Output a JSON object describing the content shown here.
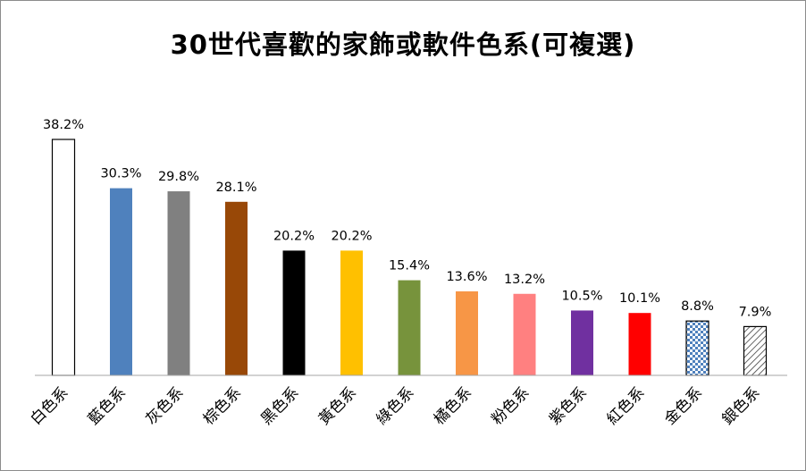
{
  "chart_data": {
    "type": "bar",
    "title": "30世代喜歡的家飾或軟件色系(可複選)",
    "categories": [
      "白色系",
      "藍色系",
      "灰色系",
      "棕色系",
      "黑色系",
      "黃色系",
      "綠色系",
      "橘色系",
      "粉色系",
      "紫色系",
      "紅色系",
      "金色系",
      "銀色系"
    ],
    "values": [
      38.2,
      30.3,
      29.8,
      28.1,
      20.2,
      20.2,
      15.4,
      13.6,
      13.2,
      10.5,
      10.1,
      8.8,
      7.9
    ],
    "value_labels": [
      "38.2%",
      "30.3%",
      "29.8%",
      "28.1%",
      "20.2%",
      "20.2%",
      "15.4%",
      "13.6%",
      "13.2%",
      "10.5%",
      "10.1%",
      "8.8%",
      "7.9%"
    ],
    "colors": [
      "#ffffff",
      "#4f81bd",
      "#808080",
      "#984807",
      "#000000",
      "#ffc000",
      "#77933c",
      "#f79646",
      "#ff8080",
      "#7030a0",
      "#ff0000",
      "checker-blue",
      "diagonal-hatch"
    ],
    "ylim": [
      0,
      40
    ],
    "grid": false,
    "legend": "none",
    "xlabel": "",
    "ylabel": ""
  }
}
